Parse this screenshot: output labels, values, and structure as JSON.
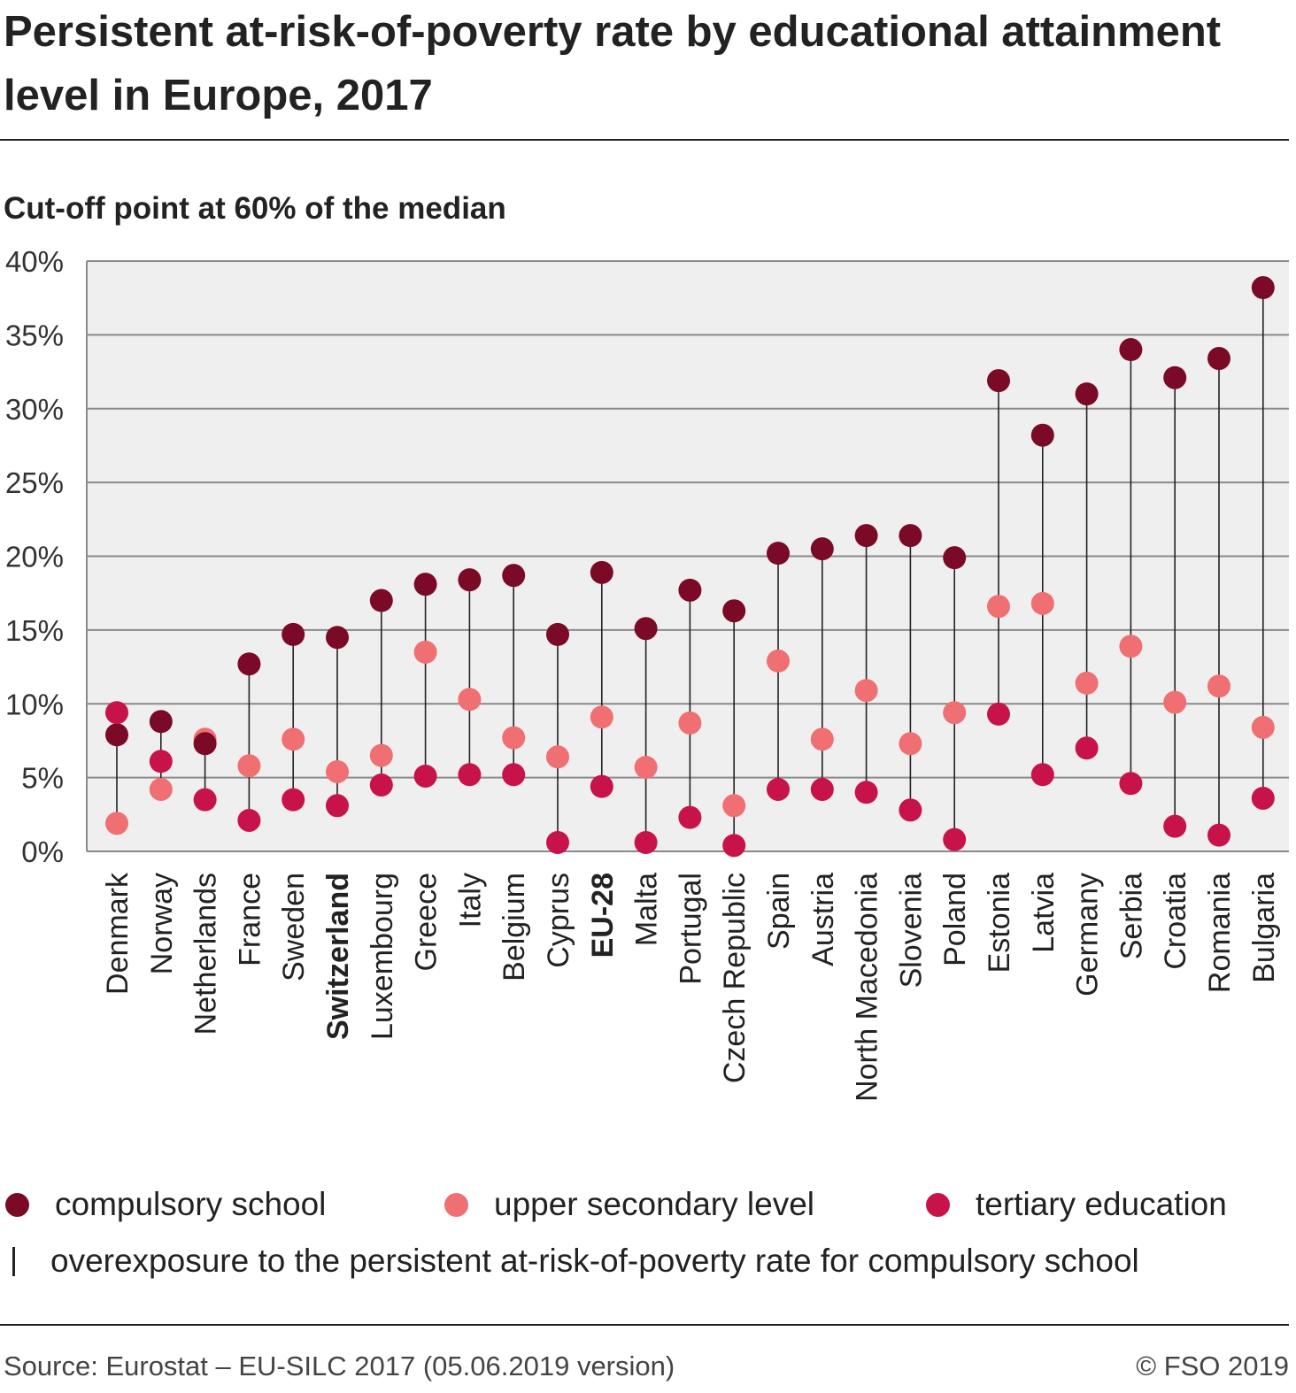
{
  "title": "Persistent at-risk-of-poverty rate by educational attainment level in Europe, 2017",
  "subtitle": "Cut-off point at 60% of the median",
  "source": "Source: Eurostat – EU-SILC 2017 (05.06.2019 version)",
  "copyright": "© FSO 2019",
  "legend": {
    "compulsory": "compulsory school",
    "upper": "upper secondary level",
    "tertiary": "tertiary education",
    "overexposure": "overexposure to the persistent at-risk-of-poverty rate for compulsory school"
  },
  "colors": {
    "compulsory": "#7a0a26",
    "upper": "#ef6f73",
    "tertiary": "#c8124a",
    "plot_background": "#efefef",
    "grid": "#8a8a8a",
    "connector": "#222222"
  },
  "chart_data": {
    "type": "scatter",
    "title": "Persistent at-risk-of-poverty rate by educational attainment level in Europe, 2017",
    "subtitle": "Cut-off point at 60% of the median",
    "ylim": [
      0,
      40
    ],
    "y_ticks": [
      0,
      5,
      10,
      15,
      20,
      25,
      30,
      35,
      40
    ],
    "y_tick_labels": [
      "0%",
      "5%",
      "10%",
      "15%",
      "20%",
      "25%",
      "30%",
      "35%",
      "40%"
    ],
    "grid": true,
    "legend_position": "bottom",
    "categories": [
      "Denmark",
      "Norway",
      "Netherlands",
      "France",
      "Sweden",
      "Switzerland",
      "Luxembourg",
      "Greece",
      "Italy",
      "Belgium",
      "Cyprus",
      "EU-28",
      "Malta",
      "Portugal",
      "Czech Republic",
      "Spain",
      "Austria",
      "North Macedonia",
      "Slovenia",
      "Poland",
      "Estonia",
      "Latvia",
      "Germany",
      "Serbia",
      "Croatia",
      "Romania",
      "Bulgaria"
    ],
    "bold_categories": [
      "Switzerland",
      "EU-28"
    ],
    "series": [
      {
        "name": "compulsory school",
        "key": "compulsory",
        "values": [
          7.9,
          8.8,
          7.3,
          12.7,
          14.7,
          14.5,
          17.0,
          18.1,
          18.4,
          18.7,
          14.7,
          18.9,
          15.1,
          17.7,
          16.3,
          20.2,
          20.5,
          21.4,
          21.4,
          19.9,
          31.9,
          28.2,
          31.0,
          34.0,
          32.1,
          33.4,
          38.2
        ]
      },
      {
        "name": "upper secondary level",
        "key": "upper",
        "values": [
          1.9,
          4.2,
          7.6,
          5.8,
          7.6,
          5.4,
          6.5,
          13.5,
          10.3,
          7.7,
          6.4,
          9.1,
          5.7,
          8.7,
          3.1,
          12.9,
          7.6,
          10.9,
          7.3,
          9.4,
          16.6,
          16.8,
          11.4,
          13.9,
          10.1,
          11.2,
          8.4
        ]
      },
      {
        "name": "tertiary education",
        "key": "tertiary",
        "values": [
          9.4,
          6.1,
          3.5,
          2.1,
          3.5,
          3.1,
          4.5,
          5.1,
          5.2,
          5.2,
          0.6,
          4.4,
          0.6,
          2.3,
          0.4,
          4.2,
          4.2,
          4.0,
          2.8,
          0.8,
          9.3,
          5.2,
          7.0,
          4.6,
          1.7,
          1.1,
          3.6
        ]
      }
    ]
  }
}
